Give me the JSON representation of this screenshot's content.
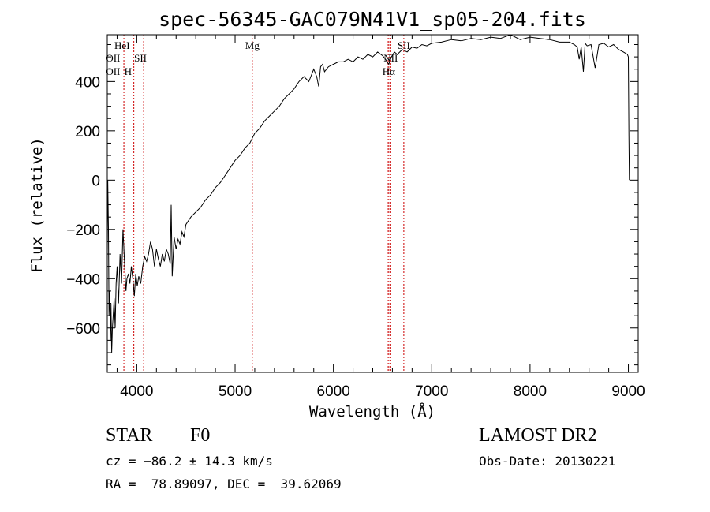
{
  "chart_data": {
    "type": "line",
    "title": "spec-56345-GAC079N41V1_sp05-204.fits",
    "xlabel": "Wavelength (Å)",
    "ylabel": "Flux (relative)",
    "xlim": [
      3700,
      9100
    ],
    "ylim": [
      -780,
      590
    ],
    "x_ticks": [
      4000,
      5000,
      6000,
      7000,
      8000,
      9000
    ],
    "x_tick_labels": [
      "4000",
      "5000",
      "6000",
      "7000",
      "8000",
      "9000"
    ],
    "y_ticks": [
      -600,
      -400,
      -200,
      0,
      200,
      400
    ],
    "y_tick_labels": [
      "−600",
      "−400",
      "−200",
      "0",
      "200",
      "400"
    ],
    "grid": false,
    "line_color": "#000000",
    "marker_color": "#cc0000",
    "series": [
      {
        "x": [
          3700,
          3705,
          3712,
          3718,
          3725,
          3732,
          3738,
          3745,
          3752,
          3760,
          3770,
          3780,
          3790,
          3800,
          3815,
          3830,
          3845,
          3860,
          3875,
          3890,
          3900,
          3915,
          3930,
          3945,
          3960,
          3975,
          3990,
          4005,
          4020,
          4040,
          4060,
          4080,
          4100,
          4120,
          4140,
          4160,
          4180,
          4200,
          4220,
          4240,
          4260,
          4280,
          4300,
          4320,
          4340,
          4350,
          4360,
          4380,
          4400,
          4420,
          4440,
          4460,
          4480,
          4500,
          4550,
          4600,
          4650,
          4700,
          4750,
          4800,
          4850,
          4900,
          4950,
          5000,
          5050,
          5100,
          5150,
          5200,
          5250,
          5300,
          5350,
          5400,
          5450,
          5500,
          5550,
          5600,
          5650,
          5700,
          5750,
          5800,
          5830,
          5850,
          5870,
          5890,
          5910,
          5950,
          6000,
          6050,
          6100,
          6150,
          6200,
          6250,
          6300,
          6350,
          6400,
          6450,
          6500,
          6530,
          6563,
          6590,
          6620,
          6650,
          6700,
          6750,
          6800,
          6850,
          6900,
          6950,
          7000,
          7100,
          7200,
          7300,
          7400,
          7500,
          7600,
          7700,
          7800,
          7850,
          7900,
          8000,
          8100,
          8200,
          8300,
          8400,
          8450,
          8480,
          8500,
          8520,
          8542,
          8560,
          8580,
          8620,
          8662,
          8700,
          8750,
          8800,
          8850,
          8900,
          8950,
          8990,
          9000,
          9005,
          9010
        ],
        "y": [
          -300,
          0,
          -200,
          -550,
          -450,
          -650,
          -500,
          -700,
          -600,
          -550,
          -480,
          -600,
          -420,
          -350,
          -500,
          -300,
          -420,
          -200,
          -330,
          -450,
          -400,
          -380,
          -420,
          -350,
          -400,
          -470,
          -380,
          -430,
          -390,
          -420,
          -350,
          -310,
          -330,
          -300,
          -250,
          -280,
          -350,
          -280,
          -320,
          -350,
          -300,
          -330,
          -280,
          -300,
          -340,
          -100,
          -390,
          -230,
          -280,
          -240,
          -260,
          -210,
          -230,
          -180,
          -150,
          -130,
          -110,
          -80,
          -60,
          -30,
          -10,
          20,
          50,
          80,
          100,
          130,
          150,
          190,
          210,
          240,
          260,
          280,
          300,
          330,
          350,
          370,
          400,
          420,
          400,
          450,
          420,
          380,
          460,
          470,
          440,
          460,
          470,
          480,
          480,
          490,
          480,
          500,
          490,
          510,
          500,
          520,
          505,
          490,
          470,
          500,
          520,
          510,
          530,
          520,
          540,
          535,
          550,
          545,
          555,
          560,
          570,
          565,
          575,
          570,
          580,
          575,
          590,
          580,
          570,
          580,
          575,
          570,
          560,
          560,
          550,
          540,
          490,
          540,
          440,
          555,
          545,
          550,
          455,
          550,
          555,
          540,
          550,
          530,
          520,
          510,
          500,
          180,
          0
        ]
      }
    ],
    "markers": [
      {
        "x": 3869,
        "label": "HeI",
        "row": 0,
        "align": "left"
      },
      {
        "x": 3727,
        "label": "OII",
        "row": 1,
        "align": "right"
      },
      {
        "x": 3727,
        "label": "OII",
        "row": 2,
        "align": "right"
      },
      {
        "x": 3970,
        "label": "H",
        "row": 2,
        "align": "left"
      },
      {
        "x": 4070,
        "label": "SII",
        "row": 1,
        "align": "left"
      },
      {
        "x": 5175,
        "label": "Mg",
        "row": 0,
        "align": "center"
      },
      {
        "x": 6563,
        "label": "Hα",
        "row": 2,
        "align": "center"
      },
      {
        "x": 6583,
        "label": "NII",
        "row": 1,
        "align": "center"
      },
      {
        "x": 6716,
        "label": "SII",
        "row": 0,
        "align": "center"
      }
    ],
    "marker_lines": [
      3869,
      3970,
      4070,
      5175,
      6548,
      6563,
      6583,
      6716
    ]
  },
  "info": {
    "object_class": "STAR",
    "subclass": "F0",
    "survey": "LAMOST DR2",
    "redshift_line": "cz = −86.2 ± 14.3 km/s",
    "obs_date_line": "Obs-Date: 20130221",
    "coords_line": "RA =  78.89097, DEC =  39.62069"
  }
}
